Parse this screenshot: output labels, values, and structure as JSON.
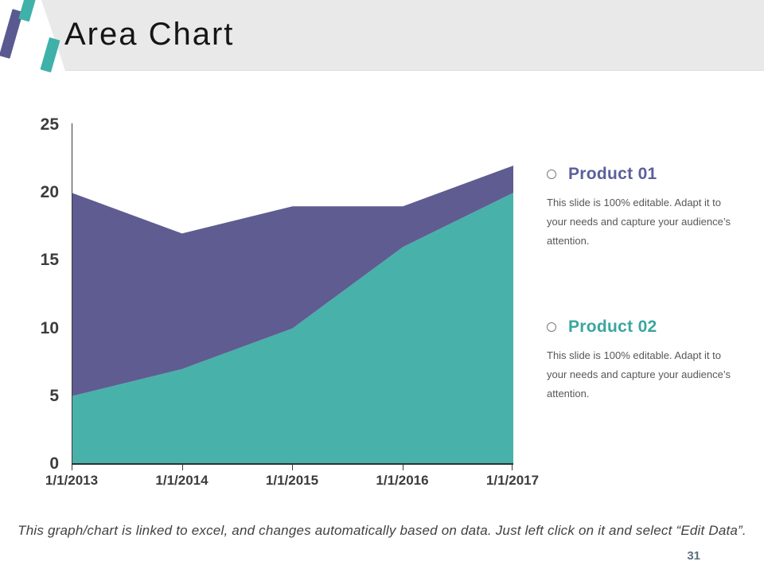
{
  "slide": {
    "title": "Area Chart",
    "page_number": "31",
    "footer_note": "This graph/chart is linked to excel, and changes automatically based on data. Just left click on it and select “Edit Data”."
  },
  "legend_sections": [
    {
      "label": "Product 01",
      "label_color": "#5b5f9b",
      "body": "This slide is 100% editable. Adapt it to your needs and capture your audience’s attention."
    },
    {
      "label": "Product 02",
      "label_color": "#3aa69f",
      "body": "This slide is 100% editable. Adapt it to your needs and capture your audience’s attention."
    }
  ],
  "chart_data": {
    "type": "area",
    "stacked": true,
    "title": "",
    "xlabel": "",
    "ylabel": "",
    "categories": [
      "1/1/2013",
      "1/1/2014",
      "1/1/2015",
      "1/1/2016",
      "1/1/2017"
    ],
    "series": [
      {
        "name": "Product 02",
        "position": "bottom",
        "color": "#48b1aa",
        "values": [
          5,
          7,
          10,
          16,
          20
        ]
      },
      {
        "name": "Product 01",
        "position": "top",
        "color": "#5f5c91",
        "values": [
          15,
          10,
          9,
          3,
          2
        ],
        "stacked_totals": [
          20,
          17,
          19,
          19,
          22
        ]
      }
    ],
    "ylim": [
      0,
      25
    ],
    "yticks": [
      0,
      5,
      10,
      15,
      20,
      25
    ],
    "grid": false,
    "legend_position": "right"
  },
  "colors": {
    "header_band": "#e9e9e9",
    "logo_purple": "#5a5990",
    "logo_teal": "#3fb1a9",
    "axis_text": "#3c3c3c",
    "body_text": "#575757",
    "page_number": "#5a7080"
  }
}
